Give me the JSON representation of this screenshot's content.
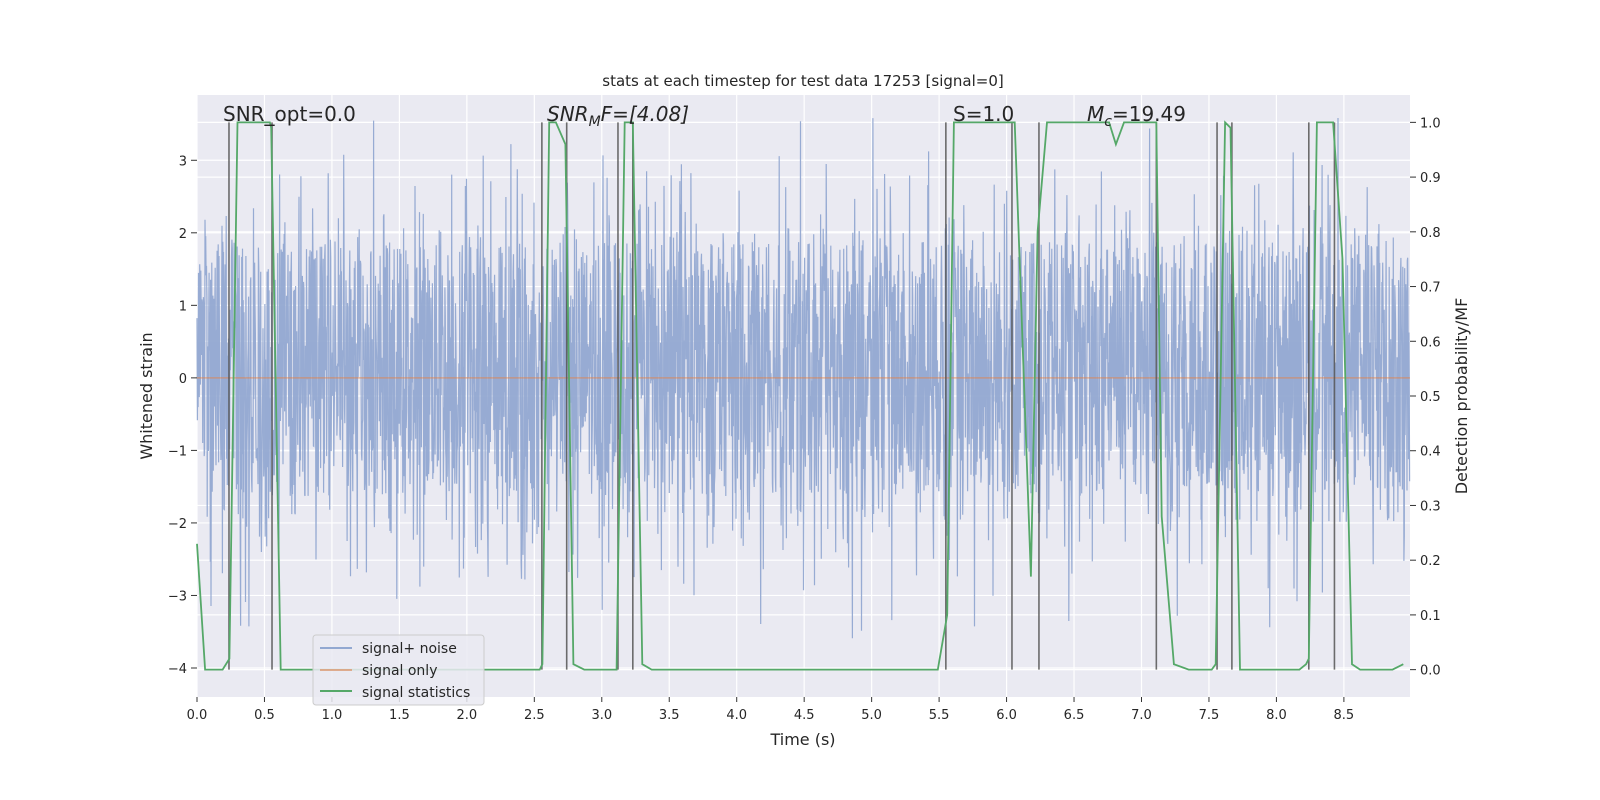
{
  "chart_data": {
    "type": "line",
    "title": "stats at each timestep for test data 17253 [signal=0]",
    "xlabel": "Time (s)",
    "ylabel": "Whitened strain",
    "ylabel_right": "Detection probability/MF",
    "xlim": [
      0.0,
      8.99
    ],
    "ylim": [
      -4.4,
      3.9
    ],
    "ylim_right": [
      -0.05,
      1.05
    ],
    "grid": true,
    "legend_placement": "lower-left",
    "x_ticks": [
      "0.0",
      "0.5",
      "1.0",
      "1.5",
      "2.0",
      "2.5",
      "3.0",
      "3.5",
      "4.0",
      "4.5",
      "5.0",
      "5.5",
      "6.0",
      "6.5",
      "7.0",
      "7.5",
      "8.0",
      "8.5"
    ],
    "y_ticks": [
      "−4",
      "−3",
      "−2",
      "−1",
      "0",
      "1",
      "2",
      "3"
    ],
    "y_ticks_right": [
      "0.0",
      "0.1",
      "0.2",
      "0.3",
      "0.4",
      "0.5",
      "0.6",
      "0.7",
      "0.8",
      "0.9",
      "1.0"
    ],
    "annotations": {
      "snr_opt": "SNR_opt=0.0",
      "snr_mf_main": "SNR",
      "snr_mf_sub": "M",
      "snr_mf_rest": "F=[4.08]",
      "s": "S=1.0",
      "mc_main": "M",
      "mc_sub": "c",
      "mc_rest": "=19.49"
    },
    "series": [
      {
        "name": "signal+ noise",
        "color": "#92a8d1",
        "description_values": "whitened noise, band about −1.8 to 2.0, spikes to about ±3.5"
      },
      {
        "name": "signal only",
        "color": "#dd8452",
        "x": [
          0,
          8.99
        ],
        "y": [
          0,
          0
        ]
      },
      {
        "name": "signal statistics",
        "color": "#55a868",
        "axis": "right",
        "x": [
          0,
          0.06,
          0.19,
          0.24,
          0.3,
          0.54,
          0.55,
          0.62,
          2.54,
          2.56,
          2.61,
          2.66,
          2.73,
          2.79,
          2.87,
          3.11,
          3.17,
          3.23,
          3.3,
          3.37,
          5.49,
          5.56,
          5.61,
          6.06,
          6.18,
          6.23,
          6.3,
          6.76,
          6.81,
          6.87,
          7.11,
          7.15,
          7.24,
          7.35,
          7.52,
          7.55,
          7.62,
          7.66,
          7.73,
          7.8,
          8.17,
          8.22,
          8.24,
          8.3,
          8.42,
          8.49,
          8.56,
          8.62,
          8.86,
          8.94
        ],
        "y": [
          0.23,
          0.0,
          0.0,
          0.02,
          1.0,
          1.0,
          0.99,
          0.0,
          0.0,
          0.01,
          1.0,
          1.0,
          0.96,
          0.01,
          0.0,
          0.0,
          1.0,
          1.0,
          0.01,
          0.0,
          0.0,
          0.1,
          1.0,
          1.0,
          0.17,
          0.8,
          1.0,
          1.0,
          0.96,
          1.0,
          1.0,
          0.28,
          0.01,
          0.0,
          0.0,
          0.01,
          1.0,
          0.99,
          0.0,
          0.0,
          0.0,
          0.01,
          0.02,
          1.0,
          1.0,
          0.75,
          0.01,
          0.0,
          0.0,
          0.01
        ]
      },
      {
        "name": "",
        "color": "#555555",
        "type": "vlines",
        "x": [
          0.237,
          0.556,
          2.556,
          2.74,
          3.12,
          3.23,
          5.55,
          6.04,
          6.24,
          7.11,
          7.56,
          7.67,
          8.24,
          8.43
        ],
        "ymin_right": 0.0,
        "ymax_right": 1.0
      }
    ]
  }
}
